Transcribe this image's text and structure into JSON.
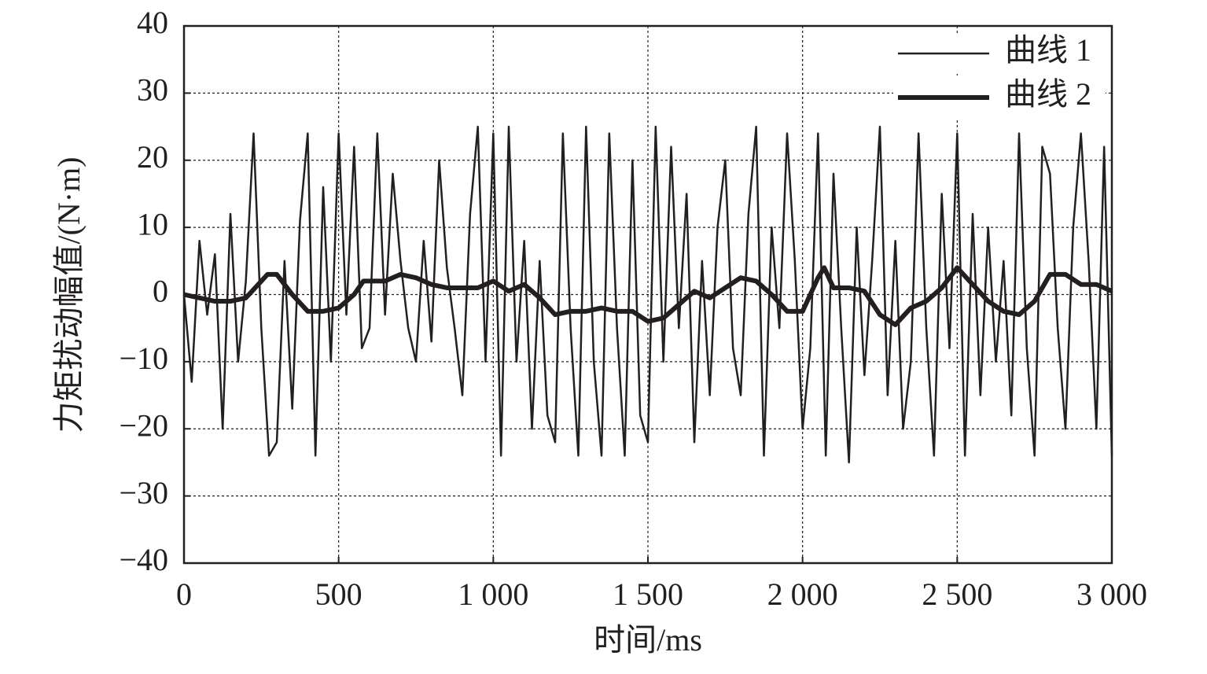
{
  "chart_data": {
    "type": "line",
    "xlabel": "时间/ms",
    "ylabel": "力矩扰动幅值/(N·m)",
    "xlim": [
      0,
      3000
    ],
    "ylim": [
      -40,
      40
    ],
    "xticks": [
      0,
      500,
      {
        "value": 1000,
        "label": "1 000"
      },
      {
        "value": 1500,
        "label": "1 500"
      },
      {
        "value": 2000,
        "label": "2 000"
      },
      {
        "value": 2500,
        "label": "2 500"
      },
      {
        "value": 3000,
        "label": "3 000"
      }
    ],
    "yticks": [
      {
        "value": -40,
        "label": "−40"
      },
      {
        "value": -30,
        "label": "−30"
      },
      {
        "value": -20,
        "label": "−20"
      },
      {
        "value": -10,
        "label": "−10"
      },
      0,
      10,
      20,
      30,
      40
    ],
    "grid": true,
    "legend": "upper right",
    "series": [
      {
        "name": "曲线 1",
        "color": "#231f20",
        "x": [
          0,
          25,
          50,
          75,
          100,
          125,
          150,
          175,
          200,
          225,
          250,
          275,
          300,
          325,
          350,
          375,
          400,
          425,
          450,
          475,
          500,
          525,
          550,
          575,
          600,
          625,
          650,
          675,
          700,
          725,
          750,
          775,
          800,
          825,
          850,
          875,
          900,
          925,
          950,
          975,
          1000,
          1025,
          1050,
          1075,
          1100,
          1125,
          1150,
          1175,
          1200,
          1225,
          1250,
          1275,
          1300,
          1325,
          1350,
          1375,
          1400,
          1425,
          1450,
          1475,
          1500,
          1525,
          1550,
          1575,
          1600,
          1625,
          1650,
          1675,
          1700,
          1725,
          1750,
          1775,
          1800,
          1825,
          1850,
          1875,
          1900,
          1925,
          1950,
          1975,
          2000,
          2025,
          2050,
          2075,
          2100,
          2125,
          2150,
          2175,
          2200,
          2225,
          2250,
          2275,
          2300,
          2325,
          2350,
          2375,
          2400,
          2425,
          2450,
          2475,
          2500,
          2525,
          2550,
          2575,
          2600,
          2625,
          2650,
          2675,
          2700,
          2725,
          2750,
          2775,
          2800,
          2825,
          2850,
          2875,
          2900,
          2925,
          2950,
          2975,
          3000
        ],
        "values": [
          0,
          -13,
          8,
          -3,
          6,
          -20,
          12,
          -10,
          2,
          24,
          -5,
          -24,
          -22,
          5,
          -17,
          11,
          24,
          -24,
          16,
          -10,
          24,
          -3,
          22,
          -8,
          -5,
          24,
          -3,
          18,
          5,
          -5,
          -10,
          8,
          -7,
          20,
          4,
          -5,
          -15,
          12,
          25,
          -10,
          24,
          -24,
          25,
          -10,
          8,
          -20,
          5,
          -18,
          -22,
          24,
          -5,
          -24,
          25,
          -10,
          -24,
          24,
          -5,
          -24,
          20,
          -18,
          -22,
          25,
          -10,
          22,
          -5,
          15,
          -22,
          5,
          -15,
          10,
          20,
          -8,
          -15,
          12,
          25,
          -24,
          10,
          -5,
          24,
          5,
          -20,
          -8,
          24,
          -24,
          18,
          -5,
          -25,
          10,
          -12,
          5,
          25,
          -15,
          8,
          -20,
          -10,
          24,
          -5,
          -24,
          15,
          -8,
          24,
          -24,
          12,
          -15,
          10,
          -10,
          5,
          -18,
          24,
          -8,
          -24,
          22,
          18,
          -5,
          -20,
          10,
          24,
          5,
          -20,
          22,
          -24
        ]
      },
      {
        "name": "曲线 2",
        "color": "#231f20",
        "x": [
          0,
          50,
          100,
          150,
          200,
          250,
          270,
          300,
          350,
          400,
          450,
          500,
          550,
          580,
          600,
          650,
          700,
          750,
          800,
          850,
          900,
          950,
          1000,
          1050,
          1100,
          1150,
          1200,
          1250,
          1300,
          1350,
          1400,
          1450,
          1500,
          1550,
          1600,
          1650,
          1700,
          1750,
          1800,
          1850,
          1900,
          1950,
          2000,
          2050,
          2070,
          2100,
          2150,
          2200,
          2250,
          2300,
          2350,
          2400,
          2450,
          2500,
          2550,
          2600,
          2650,
          2700,
          2750,
          2800,
          2850,
          2900,
          2950,
          3000
        ],
        "values": [
          0,
          -0.5,
          -1,
          -1,
          -0.5,
          2,
          3,
          3,
          0,
          -2.5,
          -2.5,
          -2,
          0,
          2,
          2,
          2,
          3,
          2.5,
          1.5,
          1,
          1,
          1,
          2,
          0.5,
          1.5,
          -0.5,
          -3,
          -2.5,
          -2.5,
          -2,
          -2.5,
          -2.5,
          -4,
          -3.5,
          -1.5,
          0.5,
          -0.5,
          1,
          2.5,
          2,
          0,
          -2.5,
          -2.5,
          2.5,
          4,
          1,
          1,
          0.5,
          -3,
          -4.5,
          -2,
          -1,
          1,
          4,
          1.5,
          -1,
          -2.5,
          -3,
          -1,
          3,
          3,
          1.5,
          1.5,
          0.5
        ]
      }
    ]
  }
}
